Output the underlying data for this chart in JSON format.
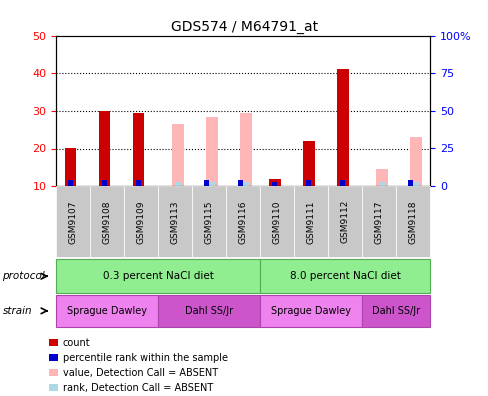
{
  "title": "GDS574 / M64791_at",
  "samples": [
    "GSM9107",
    "GSM9108",
    "GSM9109",
    "GSM9113",
    "GSM9115",
    "GSM9116",
    "GSM9110",
    "GSM9111",
    "GSM9112",
    "GSM9117",
    "GSM9118"
  ],
  "red_bars": [
    20,
    30,
    29.5,
    0,
    0,
    0,
    12,
    22,
    41,
    0,
    0
  ],
  "blue_bars": [
    1.5,
    1.5,
    1.5,
    0,
    1.5,
    1.5,
    1.0,
    1.5,
    1.5,
    0,
    1.5
  ],
  "pink_bars": [
    0,
    0,
    0,
    26.5,
    28.5,
    29.5,
    0,
    0,
    0,
    14.5,
    23
  ],
  "lightblue_bars": [
    0,
    0,
    0,
    1.2,
    1.2,
    1.2,
    0,
    0,
    0,
    1.2,
    1.2
  ],
  "ylim_left": [
    10,
    50
  ],
  "ylim_right": [
    0,
    100
  ],
  "yticks_left": [
    10,
    20,
    30,
    40,
    50
  ],
  "ytick_labels_left": [
    "10",
    "20",
    "30",
    "40",
    "50"
  ],
  "yticks_right": [
    0,
    25,
    50,
    75,
    100
  ],
  "ytick_labels_right": [
    "0",
    "25",
    "50",
    "75",
    "100%"
  ],
  "protocol_data": [
    {
      "start": 0,
      "end": 5,
      "label": "0.3 percent NaCl diet"
    },
    {
      "start": 6,
      "end": 10,
      "label": "8.0 percent NaCl diet"
    }
  ],
  "strain_data": [
    {
      "start": 0,
      "end": 2,
      "label": "Sprague Dawley",
      "color": "#EE82EE"
    },
    {
      "start": 3,
      "end": 5,
      "label": "Dahl SS/Jr",
      "color": "#CC55CC"
    },
    {
      "start": 6,
      "end": 8,
      "label": "Sprague Dawley",
      "color": "#EE82EE"
    },
    {
      "start": 9,
      "end": 10,
      "label": "Dahl SS/Jr",
      "color": "#CC55CC"
    }
  ],
  "protocol_color": "#90EE90",
  "red_color": "#CC0000",
  "blue_color": "#0000CC",
  "pink_color": "#FFB6B6",
  "lightblue_color": "#ADD8E6",
  "legend_items": [
    {
      "color": "#CC0000",
      "label": "count"
    },
    {
      "color": "#0000CC",
      "label": "percentile rank within the sample"
    },
    {
      "color": "#FFB6B6",
      "label": "value, Detection Call = ABSENT"
    },
    {
      "color": "#ADD8E6",
      "label": "rank, Detection Call = ABSENT"
    }
  ]
}
